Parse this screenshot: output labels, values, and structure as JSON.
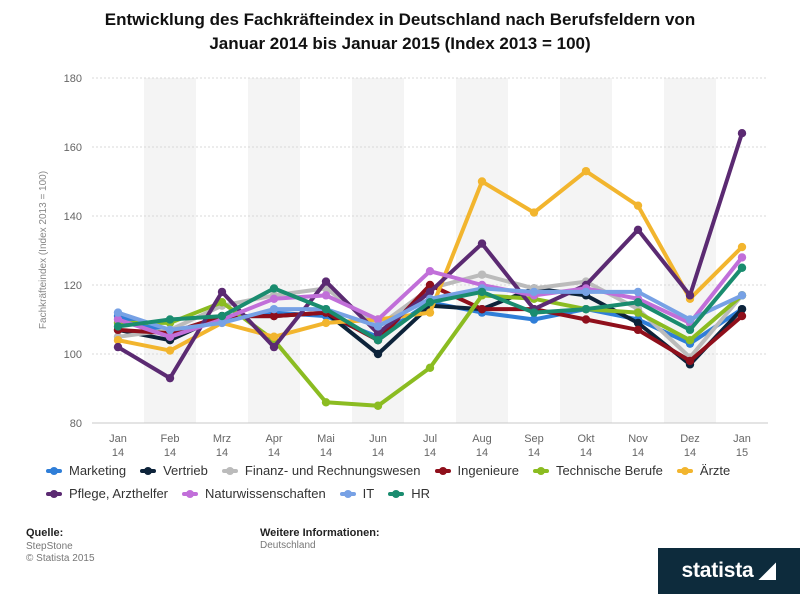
{
  "title_lines": [
    "Entwicklung des Fachkräfteindex in Deutschland nach Berufsfeldern von",
    "Januar 2014 bis Januar 2015 (Index 2013 = 100)"
  ],
  "chart_data": {
    "type": "line",
    "title": "Entwicklung des Fachkräfteindex in Deutschland nach Berufsfeldern von Januar 2014 bis Januar 2015 (Index 2013 = 100)",
    "xlabel": "",
    "ylabel": "Fachkräfteindex (Index 2013 = 100)",
    "ylim": [
      80,
      180
    ],
    "yticks": [
      80,
      100,
      120,
      140,
      160,
      180
    ],
    "grid": true,
    "legend_position": "bottom",
    "categories": [
      {
        "month": "Jan",
        "year": "14"
      },
      {
        "month": "Feb",
        "year": "14"
      },
      {
        "month": "Mrz",
        "year": "14"
      },
      {
        "month": "Apr",
        "year": "14"
      },
      {
        "month": "Mai",
        "year": "14"
      },
      {
        "month": "Jun",
        "year": "14"
      },
      {
        "month": "Jul",
        "year": "14"
      },
      {
        "month": "Aug",
        "year": "14"
      },
      {
        "month": "Sep",
        "year": "14"
      },
      {
        "month": "Okt",
        "year": "14"
      },
      {
        "month": "Nov",
        "year": "14"
      },
      {
        "month": "Dez",
        "year": "14"
      },
      {
        "month": "Jan",
        "year": "15"
      }
    ],
    "series": [
      {
        "name": "Marketing",
        "color": "#2f7ed8",
        "values": [
          111,
          106,
          110,
          112,
          111,
          105,
          115,
          112,
          110,
          113,
          110,
          103,
          113
        ]
      },
      {
        "name": "Vertrieb",
        "color": "#0d233a",
        "values": [
          107,
          104,
          111,
          111,
          112,
          100,
          114,
          113,
          119,
          117,
          109,
          97,
          113
        ]
      },
      {
        "name": "Finanz- und Rechnungswesen",
        "color": "#bbbbbb",
        "values": [
          105,
          107,
          114,
          117,
          119,
          108,
          119,
          123,
          119,
          121,
          113,
          99,
          117
        ]
      },
      {
        "name": "Ingenieure",
        "color": "#8f0f1b",
        "values": [
          107,
          106,
          111,
          111,
          112,
          104,
          120,
          113,
          113,
          110,
          107,
          98,
          111
        ]
      },
      {
        "name": "Technische Berufe",
        "color": "#8bbc21",
        "values": [
          109,
          109,
          115,
          104,
          86,
          85,
          96,
          117,
          116,
          113,
          112,
          104,
          117
        ]
      },
      {
        "name": "Ärzte",
        "color": "#f2b52e",
        "values": [
          104,
          101,
          109,
          105,
          109,
          110,
          112,
          150,
          141,
          153,
          143,
          116,
          131
        ]
      },
      {
        "name": "Pflege, Arzthelfer",
        "color": "#5b2a72",
        "values": [
          102,
          93,
          118,
          102,
          121,
          106,
          118,
          132,
          113,
          120,
          136,
          117,
          164
        ]
      },
      {
        "name": "Naturwissenschaften",
        "color": "#c16fd9",
        "values": [
          110,
          105,
          110,
          116,
          117,
          110,
          124,
          120,
          117,
          119,
          116,
          109,
          128
        ]
      },
      {
        "name": "IT",
        "color": "#77a1e5",
        "values": [
          112,
          107,
          109,
          113,
          113,
          108,
          116,
          119,
          118,
          118,
          118,
          110,
          117
        ]
      },
      {
        "name": "HR",
        "color": "#1a8c6f",
        "values": [
          108,
          110,
          111,
          119,
          113,
          104,
          115,
          118,
          112,
          113,
          115,
          107,
          125
        ]
      }
    ]
  },
  "footer": {
    "source_heading": "Quelle:",
    "source_lines": [
      "StepStone",
      "© Statista 2015"
    ],
    "info_heading": "Weitere Informationen:",
    "info_line": "Deutschland",
    "brand": "statista"
  }
}
